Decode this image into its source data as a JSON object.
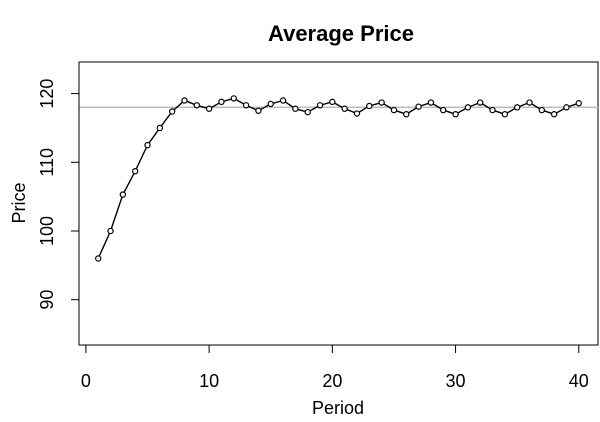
{
  "chart_data": {
    "type": "line",
    "title": "Average Price",
    "xlabel": "Period",
    "ylabel": "Price",
    "xlim": [
      -0.56,
      41.56
    ],
    "ylim": [
      83.4,
      124.6
    ],
    "x_ticks": [
      0,
      10,
      20,
      30,
      40
    ],
    "y_ticks": [
      90,
      100,
      110,
      120
    ],
    "reference_line": {
      "y": 118,
      "color": "#bebebe"
    },
    "grid": false,
    "series": [
      {
        "marker": "open-circle",
        "color": "#000000",
        "x": [
          1,
          2,
          3,
          4,
          5,
          6,
          7,
          8,
          9,
          10,
          11,
          12,
          13,
          14,
          15,
          16,
          17,
          18,
          19,
          20,
          21,
          22,
          23,
          24,
          25,
          26,
          27,
          28,
          29,
          30,
          31,
          32,
          33,
          34,
          35,
          36,
          37,
          38,
          39,
          40
        ],
        "values": [
          96,
          100,
          105.3,
          108.7,
          112.5,
          115,
          117.4,
          119,
          118.3,
          117.8,
          118.8,
          119.3,
          118.3,
          117.5,
          118.5,
          119,
          117.8,
          117.3,
          118.3,
          118.8,
          117.8,
          117.1,
          118.2,
          118.7,
          117.6,
          117,
          118.1,
          118.7,
          117.6,
          117,
          118,
          118.7,
          117.6,
          117,
          118,
          118.7,
          117.6,
          117,
          118,
          118.6
        ]
      }
    ]
  }
}
